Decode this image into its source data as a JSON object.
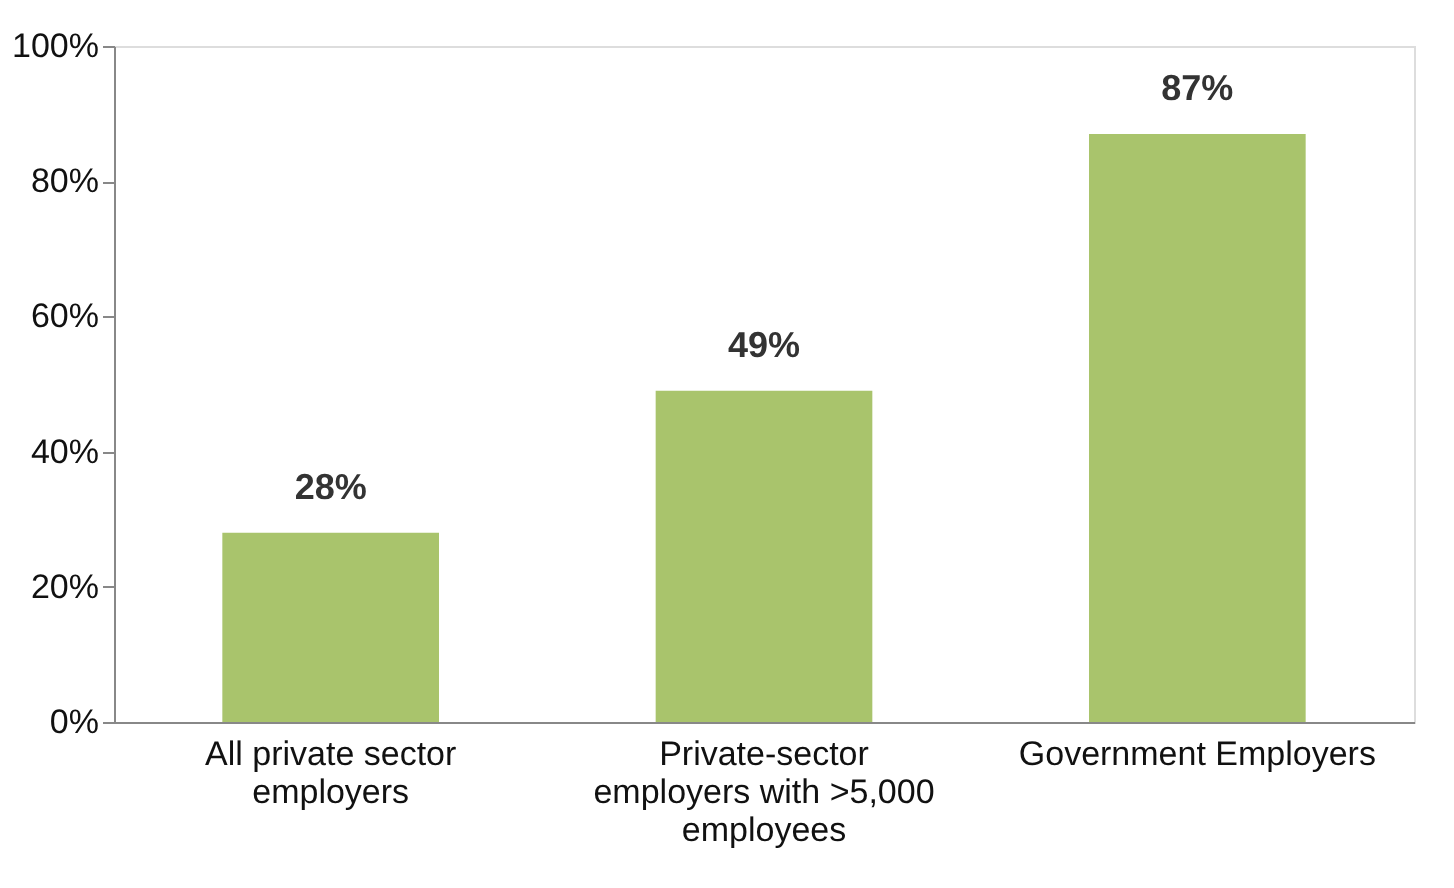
{
  "chart_data": {
    "type": "bar",
    "categories": [
      "All private sector employers",
      "Private-sector employers with >5,000 employees",
      "Government Employers"
    ],
    "values": [
      28,
      49,
      87
    ],
    "value_labels": [
      "28%",
      "49%",
      "87%"
    ],
    "color": "#a9c46c",
    "ylim": [
      0,
      100
    ],
    "yticks": [
      {
        "value": 0,
        "label": "0%"
      },
      {
        "value": 20,
        "label": "20%"
      },
      {
        "value": 40,
        "label": "40%"
      },
      {
        "value": 60,
        "label": "60%"
      },
      {
        "value": 80,
        "label": "80%"
      },
      {
        "value": 100,
        "label": "100%"
      }
    ],
    "grid": false
  }
}
